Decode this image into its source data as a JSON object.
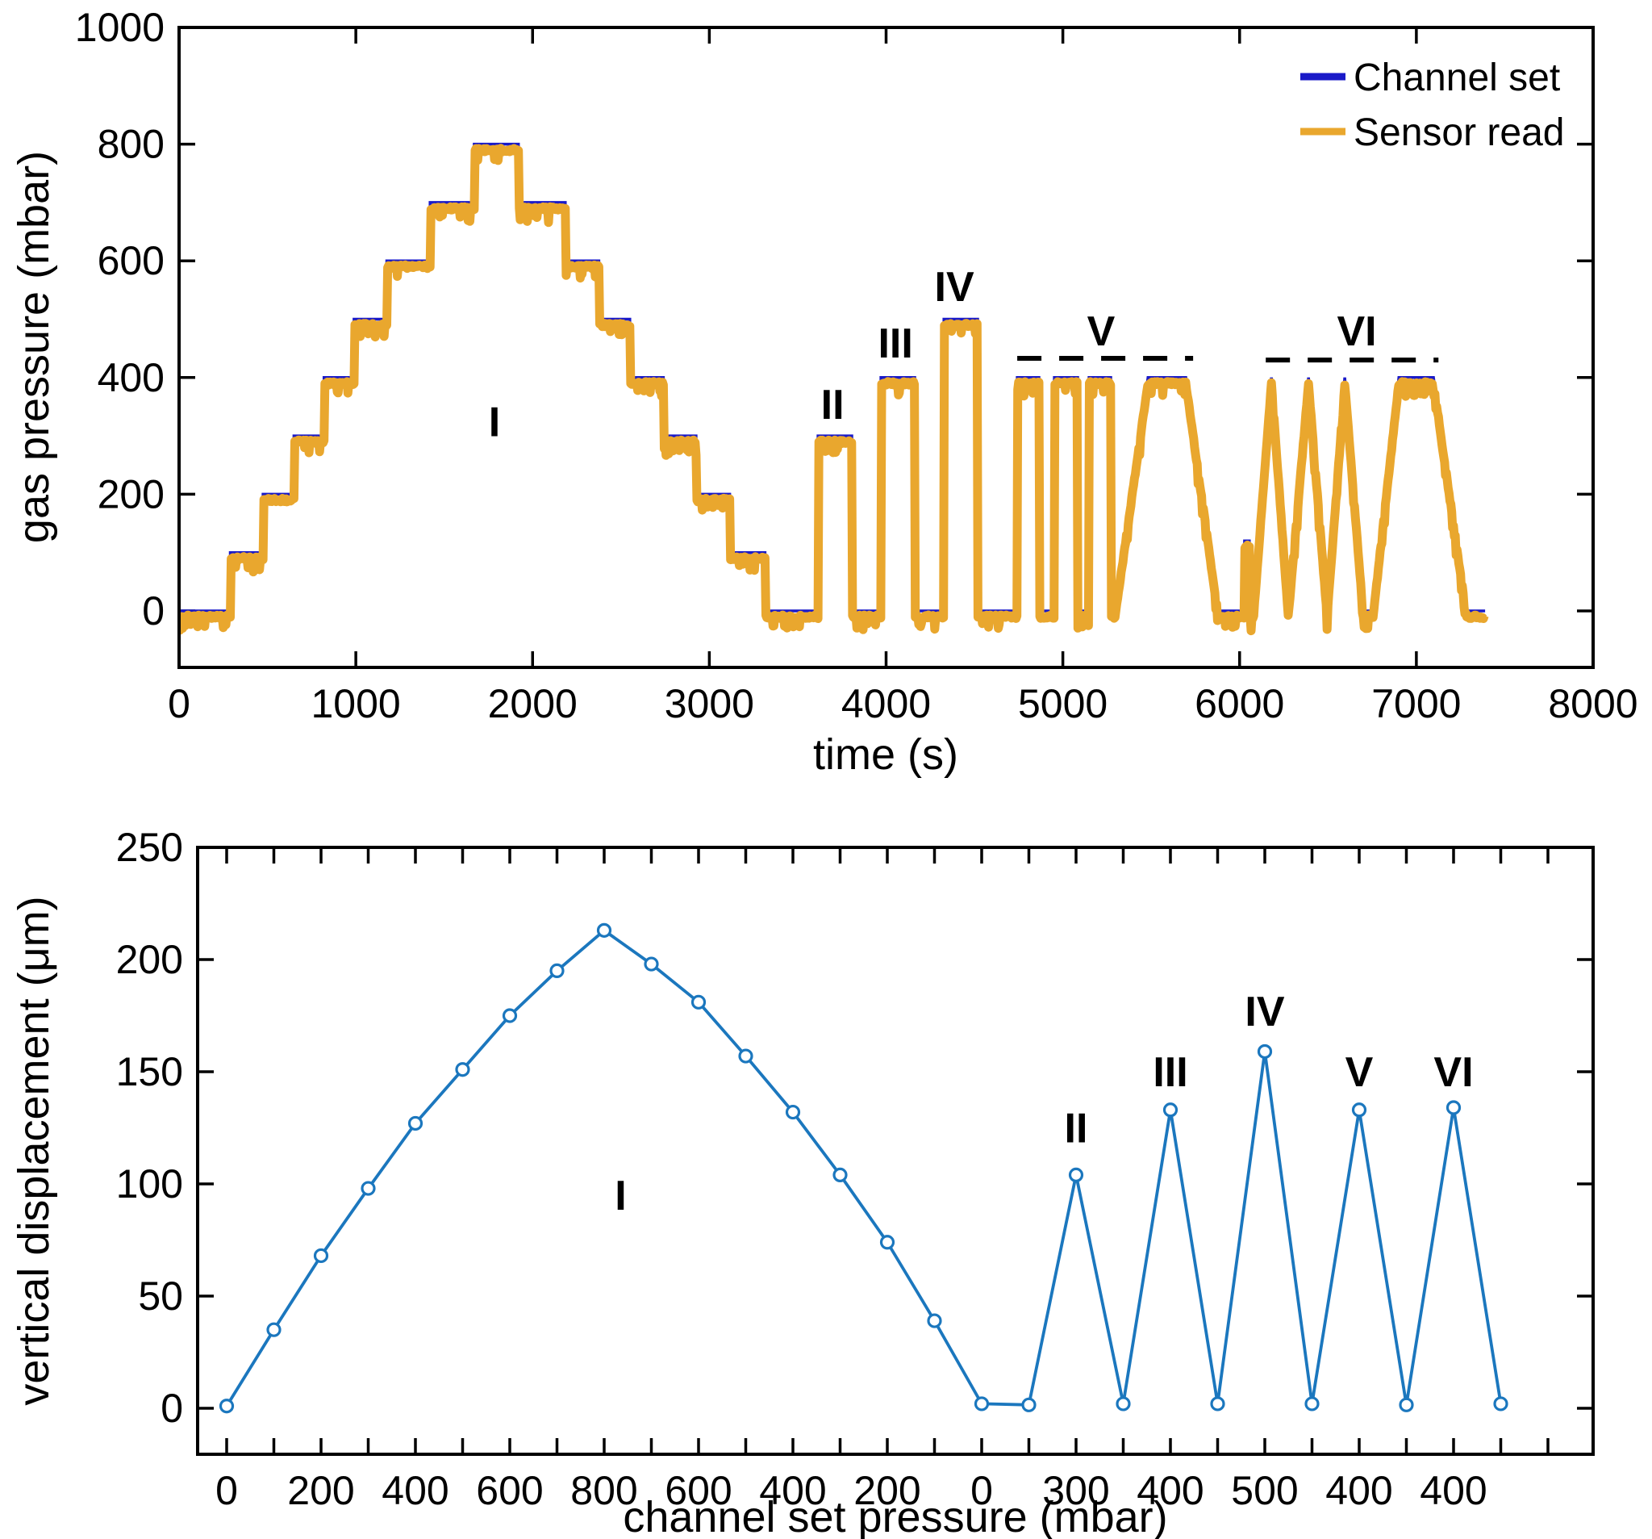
{
  "colors": {
    "channel_set": "#1a1ac8",
    "sensor_read": "#e9a72e",
    "displacement_line": "#1b77be",
    "axis": "#000000",
    "annotation_dash": "#000000",
    "background": "#ffffff"
  },
  "chart_data": [
    {
      "type": "line",
      "title": "",
      "xlabel": "time (s)",
      "ylabel": "gas pressure (mbar)",
      "xlim": [
        0,
        8000
      ],
      "ylim": [
        -95,
        1000
      ],
      "xticks": [
        0,
        1000,
        2000,
        3000,
        4000,
        5000,
        6000,
        7000,
        8000
      ],
      "yticks": [
        0,
        200,
        400,
        600,
        800,
        1000
      ],
      "grid": false,
      "legend_position": "top-right",
      "legend": [
        {
          "label": "Channel set",
          "color_key": "channel_set"
        },
        {
          "label": "Sensor read",
          "color_key": "sensor_read"
        }
      ],
      "series": [
        {
          "name": "Channel set",
          "color_key": "channel_set",
          "points": [
            [
              0,
              0
            ],
            [
              290,
              0
            ],
            [
              290,
              100
            ],
            [
              475,
              100
            ],
            [
              475,
              200
            ],
            [
              650,
              200
            ],
            [
              650,
              300
            ],
            [
              820,
              300
            ],
            [
              820,
              400
            ],
            [
              990,
              400
            ],
            [
              990,
              500
            ],
            [
              1175,
              500
            ],
            [
              1175,
              600
            ],
            [
              1420,
              600
            ],
            [
              1420,
              700
            ],
            [
              1670,
              700
            ],
            [
              1670,
              800
            ],
            [
              1920,
              800
            ],
            [
              1920,
              700
            ],
            [
              2185,
              700
            ],
            [
              2185,
              600
            ],
            [
              2375,
              600
            ],
            [
              2375,
              500
            ],
            [
              2550,
              500
            ],
            [
              2550,
              400
            ],
            [
              2740,
              400
            ],
            [
              2740,
              300
            ],
            [
              2925,
              300
            ],
            [
              2925,
              200
            ],
            [
              3115,
              200
            ],
            [
              3115,
              100
            ],
            [
              3315,
              100
            ],
            [
              3315,
              0
            ],
            [
              3615,
              0
            ],
            [
              3615,
              300
            ],
            [
              3806,
              300
            ],
            [
              3806,
              0
            ],
            [
              3971,
              0
            ],
            [
              3971,
              400
            ],
            [
              4162,
              400
            ],
            [
              4162,
              0
            ],
            [
              4327,
              0
            ],
            [
              4327,
              500
            ],
            [
              4518,
              500
            ],
            [
              4518,
              0
            ],
            [
              4742,
              0
            ],
            [
              4742,
              400
            ],
            [
              4865,
              400
            ],
            [
              4865,
              0
            ],
            [
              4952,
              0
            ],
            [
              4952,
              400
            ],
            [
              5084,
              400
            ],
            [
              5084,
              0
            ],
            [
              5148,
              0
            ],
            [
              5148,
              400
            ],
            [
              5271,
              400
            ],
            [
              5271,
              0
            ],
            [
              5295,
              0
            ],
            [
              5482,
              400
            ],
            [
              5696,
              400
            ],
            [
              5879,
              0
            ],
            [
              6028,
              0
            ],
            [
              6028,
              120
            ],
            [
              6055,
              120
            ],
            [
              6055,
              0
            ],
            [
              6079,
              0
            ],
            [
              6180,
              400
            ],
            [
              6276,
              0
            ],
            [
              6390,
              400
            ],
            [
              6495,
              0
            ],
            [
              6595,
              400
            ],
            [
              6700,
              0
            ],
            [
              6755,
              0
            ],
            [
              6901,
              400
            ],
            [
              7097,
              400
            ],
            [
              7284,
              0
            ],
            [
              7389,
              0
            ]
          ]
        },
        {
          "name": "Sensor read",
          "color_key": "sensor_read",
          "derived_from": "Channel set",
          "offset_mbar": -10,
          "noise_band_mbar": 20,
          "note": "sensor trace follows the set schedule with small negative offset and fluctuation noise"
        }
      ],
      "annotations": [
        {
          "label": "I",
          "t": 1784,
          "p": 324
        },
        {
          "label": "II",
          "t": 3697,
          "p": 354
        },
        {
          "label": "III",
          "t": 4053,
          "p": 459
        },
        {
          "label": "IV",
          "t": 4386,
          "p": 556
        },
        {
          "label": "V",
          "t": 5216,
          "p": 480
        },
        {
          "label": "VI",
          "t": 6663,
          "p": 480
        }
      ],
      "dashed_lines": [
        {
          "p": 433,
          "t_start": 4742,
          "t_end": 5737
        },
        {
          "p": 430,
          "t_start": 6148,
          "t_end": 7125
        }
      ]
    },
    {
      "type": "line",
      "title": "",
      "xlabel": "channel set pressure (mbar)",
      "ylabel": "vertical displacement (μm)",
      "x_type": "sequence",
      "ylim": [
        -20,
        250
      ],
      "yticks": [
        0,
        50,
        100,
        150,
        200,
        250
      ],
      "grid": false,
      "marker": "open-circle",
      "tick_labels_every": 2,
      "x_tick_labels": [
        "0",
        "200",
        "400",
        "600",
        "800",
        "600",
        "400",
        "200",
        "0",
        "300",
        "400",
        "500",
        "400",
        "400"
      ],
      "n_x_ticks": 29,
      "values": [
        1,
        35,
        68,
        98,
        127,
        151,
        175,
        195,
        213,
        198,
        181,
        157,
        132,
        104,
        74,
        39,
        2,
        1.5,
        104,
        2,
        133,
        2,
        159,
        2,
        133,
        1.5,
        134,
        2
      ],
      "annotations": [
        {
          "label": "I",
          "idx": 8.35,
          "v": 95
        },
        {
          "label": "II",
          "idx": 18,
          "v": 125
        },
        {
          "label": "III",
          "idx": 20,
          "v": 150
        },
        {
          "label": "IV",
          "idx": 22,
          "v": 177
        },
        {
          "label": "V",
          "idx": 24,
          "v": 150
        },
        {
          "label": "VI",
          "idx": 26,
          "v": 150
        }
      ]
    }
  ]
}
